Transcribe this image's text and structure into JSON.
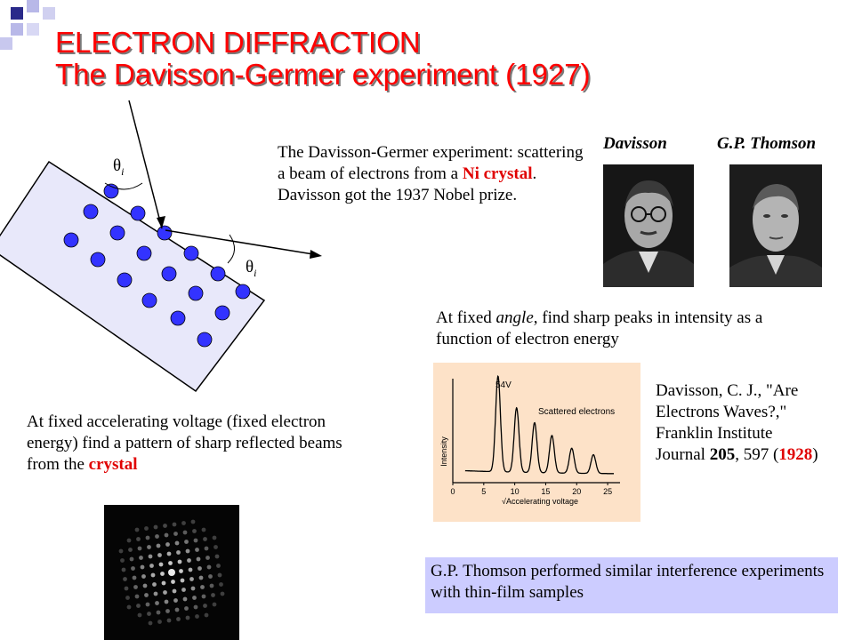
{
  "title": {
    "line1": "ELECTRON DIFFRACTION",
    "line2": "The Davisson-Germer experiment (1927)"
  },
  "diagram": {
    "theta_top": "θi",
    "theta_bottom": "θi"
  },
  "experiment_text": {
    "part1": "The Davisson-Germer experiment: scattering a beam of electrons from a ",
    "highlight": "Ni crystal",
    "part2": ". Davisson got the 1937 Nobel prize."
  },
  "photos": {
    "davisson_label": "Davisson",
    "thomson_label": "G.P. Thomson"
  },
  "fixed_angle": {
    "part1": "At fixed ",
    "em": "angle",
    "part2": ", find sharp peaks in intensity as a function of electron energy"
  },
  "voltage_text": {
    "part1": "At fixed accelerating voltage (fixed electron energy) find a pattern of sharp reflected beams from the ",
    "highlight": "crystal"
  },
  "citation": {
    "part1": "Davisson, C. J., \"Are Electrons Waves?,\" Franklin Institute Journal ",
    "volume": "205",
    "part2": ", 597 (",
    "year": "1928",
    "part3": ")"
  },
  "thomson_box": {
    "text": "G.P. Thomson performed similar interference experiments with thin-film samples"
  },
  "chart_data": {
    "type": "line",
    "title": "",
    "peak_label": "54V",
    "series_label": "Scattered electrons",
    "xlabel": "√Accelerating voltage",
    "ylabel": "Intensity",
    "xticks": [
      "0",
      "5",
      "10",
      "15",
      "20",
      "25"
    ],
    "xlim": [
      0,
      27
    ],
    "peaks": [
      {
        "x": 7.3,
        "height": 0.92
      },
      {
        "x": 10.3,
        "height": 0.62
      },
      {
        "x": 13.2,
        "height": 0.48
      },
      {
        "x": 16.0,
        "height": 0.36
      },
      {
        "x": 19.2,
        "height": 0.24
      },
      {
        "x": 22.7,
        "height": 0.18
      }
    ],
    "background_color": "#fde2c8"
  }
}
